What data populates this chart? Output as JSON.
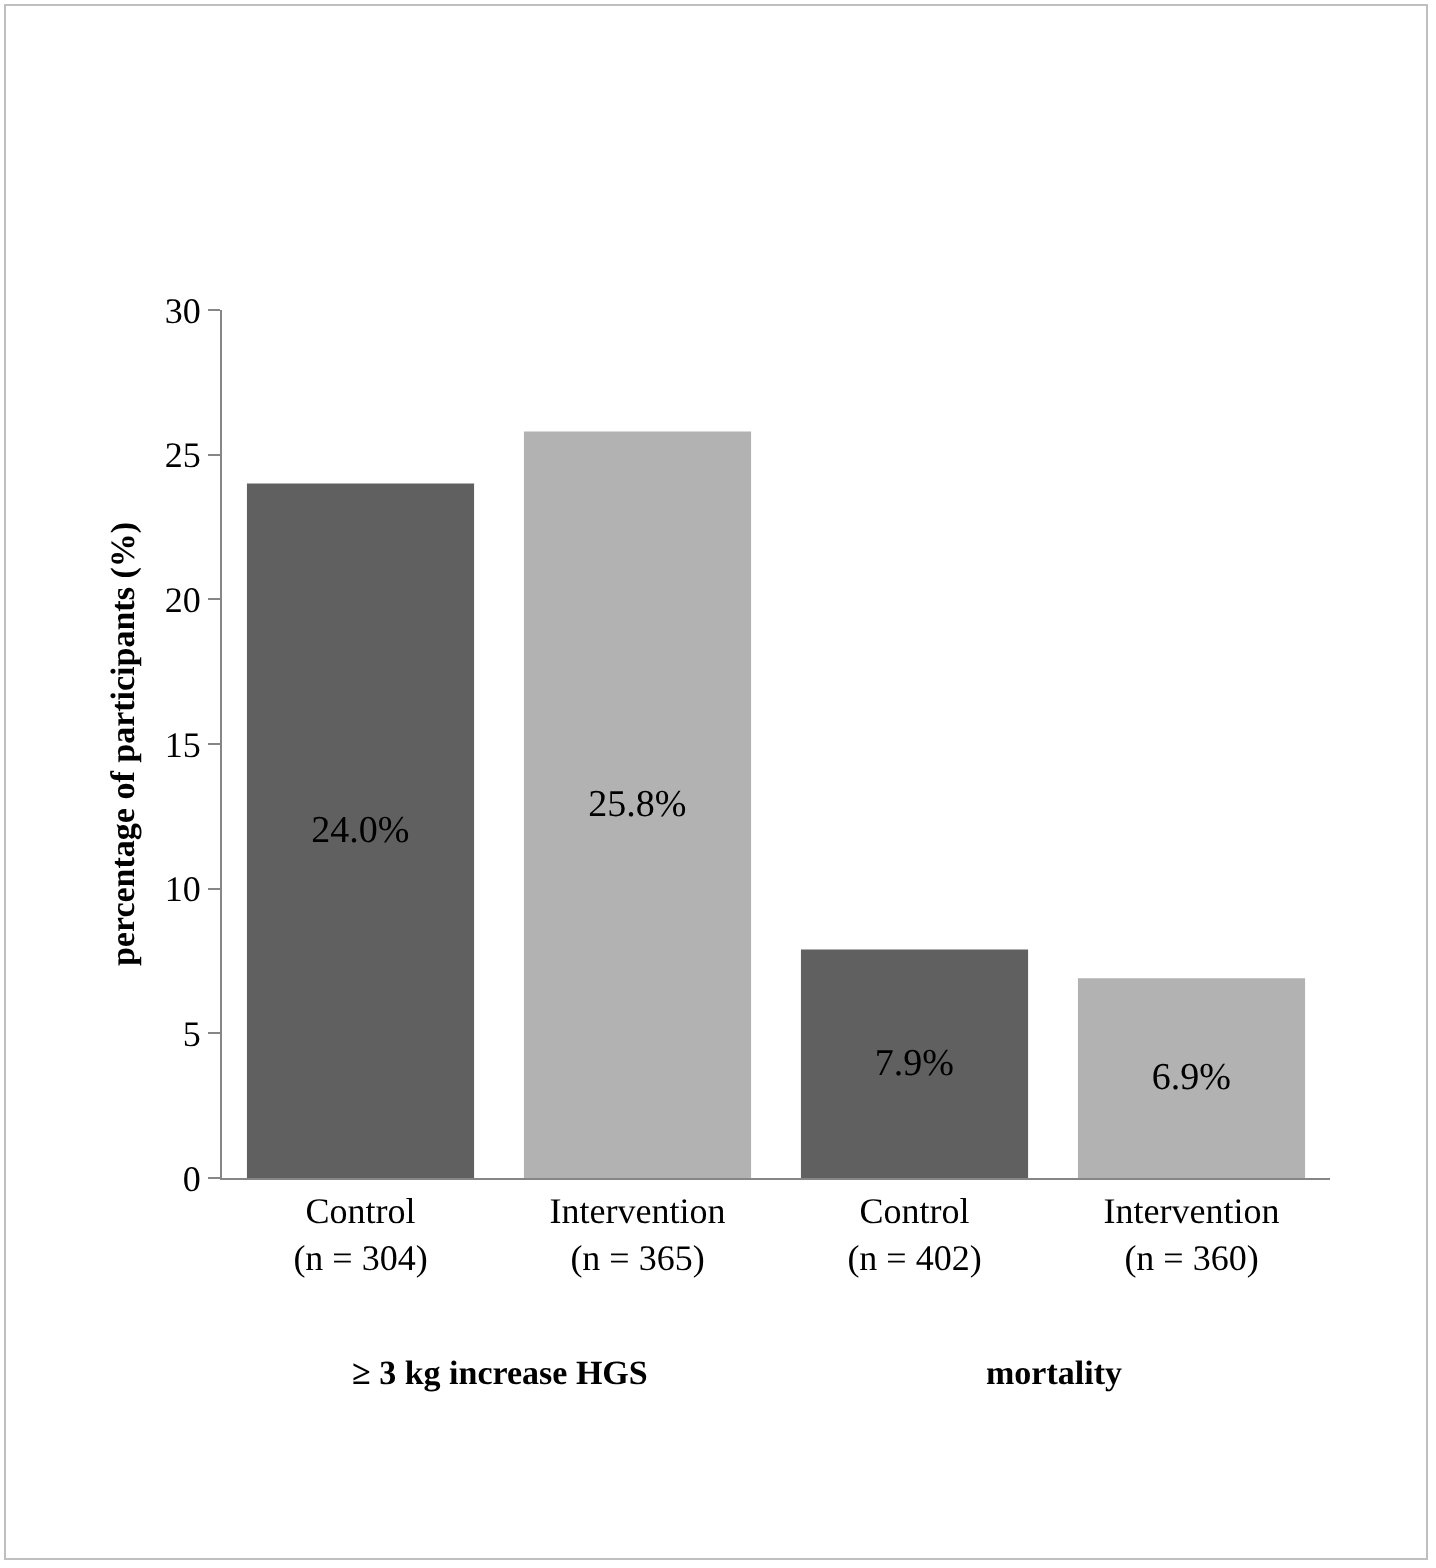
{
  "chart_data": {
    "type": "bar",
    "ylabel": "percentage of participants (%)",
    "categories": [
      "Control\n(n = 304)",
      "Intervention\n(n = 365)",
      "Control\n(n = 402)",
      "Intervention\n(n = 360)"
    ],
    "values": [
      24.0,
      25.8,
      7.9,
      6.9
    ],
    "colors": [
      "#606060",
      "#b2b2b2",
      "#606060",
      "#b2b2b2"
    ],
    "value_labels": [
      "24.0%",
      "25.8%",
      "7.9%",
      "6.9%"
    ],
    "ylim": [
      0,
      30
    ],
    "yticks": [
      0,
      5,
      10,
      15,
      20,
      25,
      30
    ],
    "grid": false,
    "annotations": [
      "≥ 3 kg increase HGS",
      "mortality"
    ]
  }
}
